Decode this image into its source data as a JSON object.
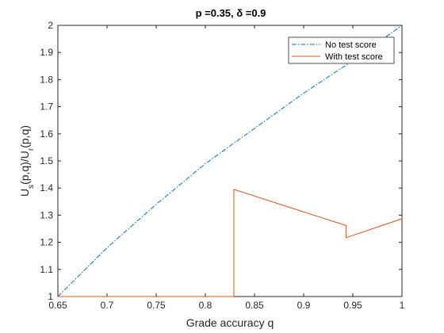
{
  "chart_data": {
    "type": "line",
    "title": "p =0.35, δ =0.9",
    "xlabel": "Grade accuracy q",
    "ylabel": "U_s(p,q)/U_r(p,q)",
    "xlim": [
      0.65,
      1.0
    ],
    "ylim": [
      1.0,
      2.0
    ],
    "xticks": [
      0.65,
      0.7,
      0.75,
      0.8,
      0.85,
      0.9,
      0.95,
      1.0
    ],
    "xtick_labels": [
      "0.65",
      "0.7",
      "0.75",
      "0.8",
      "0.85",
      "0.9",
      "0.95",
      "1"
    ],
    "yticks": [
      1.0,
      1.1,
      1.2,
      1.3,
      1.4,
      1.5,
      1.6,
      1.7,
      1.8,
      1.9,
      2.0
    ],
    "ytick_labels": [
      "1",
      "1.1",
      "1.2",
      "1.3",
      "1.4",
      "1.5",
      "1.6",
      "1.7",
      "1.8",
      "1.9",
      "2"
    ],
    "grid": false,
    "legend_position": "top-right",
    "colors": {
      "no_test": "#0072BD",
      "with_test": "#D95319"
    },
    "series": [
      {
        "name": "No test score",
        "style": "dash-dot",
        "x": [
          0.65,
          0.7,
          0.75,
          0.8,
          0.85,
          0.9,
          0.95,
          1.0
        ],
        "y": [
          1.0,
          1.18,
          1.34,
          1.49,
          1.62,
          1.75,
          1.87,
          2.0
        ]
      },
      {
        "name": "With test score",
        "style": "solid",
        "x": [
          0.65,
          0.829,
          0.829,
          0.943,
          0.943,
          1.0
        ],
        "y": [
          1.0,
          1.0,
          1.395,
          1.262,
          1.217,
          1.287
        ]
      }
    ]
  }
}
